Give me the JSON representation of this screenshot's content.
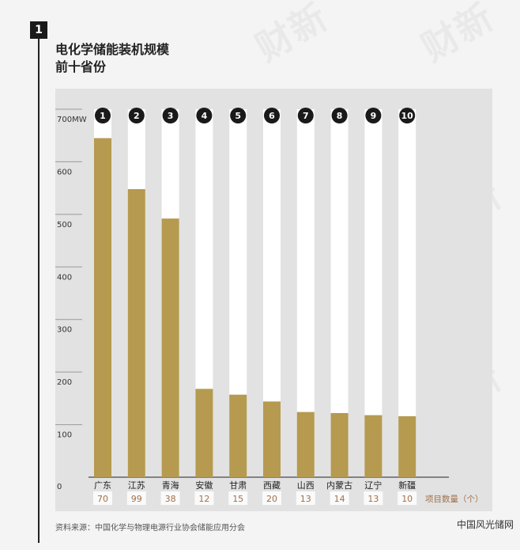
{
  "section_number": "1",
  "title_lines": [
    "电化学储能装机规模",
    "前十省份"
  ],
  "source": "资料来源：中国化学与物理电源行业协会储能应用分会",
  "site_watermark": "中国风光储网",
  "watermark_text": "财新",
  "colors": {
    "bar": "#b59a4f",
    "bar_track": "#ffffff",
    "panel": "#e2e2e2",
    "rank_circle": "#1a1a1a",
    "count_text": "#a0704a"
  },
  "chart_data": {
    "type": "bar",
    "title": "电化学储能装机规模 前十省份",
    "y_unit_label": "700MW",
    "y_ticks": [
      "0",
      "100",
      "200",
      "300",
      "400",
      "500",
      "600",
      "700MW"
    ],
    "ylim": [
      0,
      700
    ],
    "grid": true,
    "categories": [
      "广东",
      "江苏",
      "青海",
      "安徽",
      "甘肃",
      "西藏",
      "山西",
      "内蒙古",
      "辽宁",
      "新疆"
    ],
    "ranks": [
      "1",
      "2",
      "3",
      "4",
      "5",
      "6",
      "7",
      "8",
      "9",
      "10"
    ],
    "values": [
      645,
      548,
      492,
      168,
      157,
      144,
      124,
      122,
      118,
      116
    ],
    "project_counts": [
      "70",
      "99",
      "38",
      "12",
      "15",
      "20",
      "13",
      "14",
      "13",
      "10"
    ],
    "project_count_label": "项目数量（个）"
  }
}
